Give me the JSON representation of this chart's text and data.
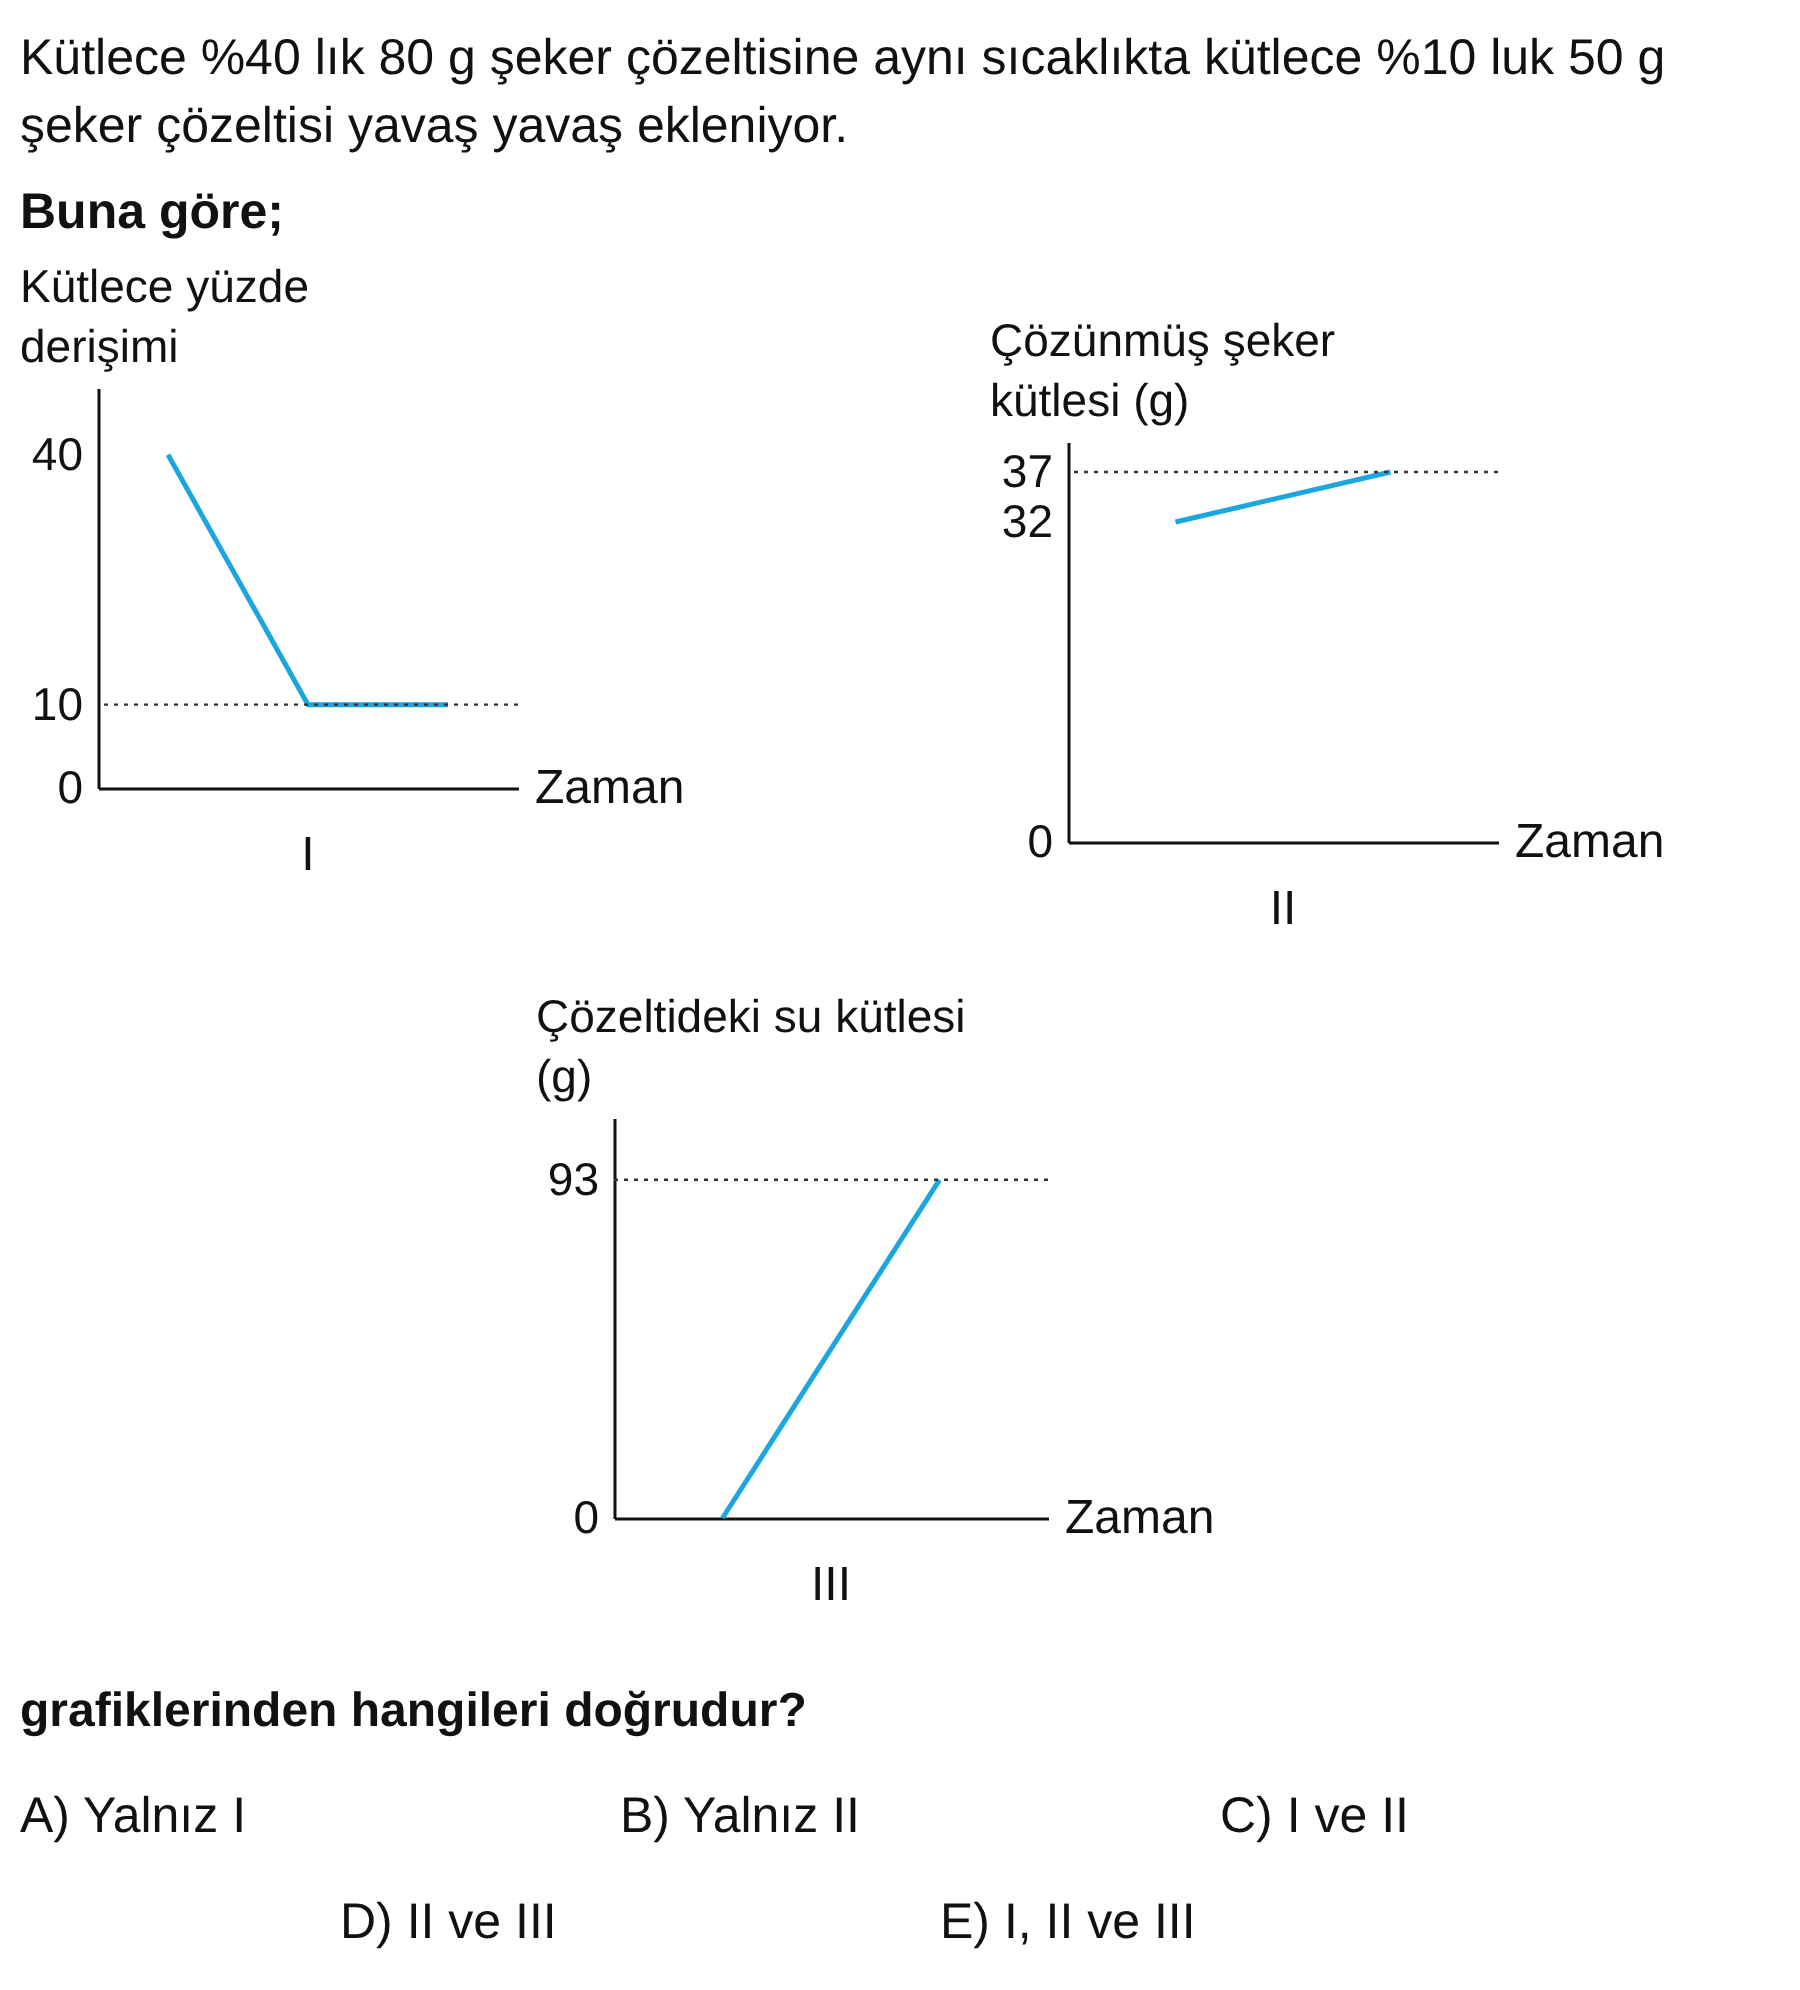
{
  "chart_data": [
    {
      "type": "line",
      "title": "Kütlece %40 lık 80 g şeker çözeltisine aynı sıcaklıkta kütlece %10 luk 50 g şeker çözeltisi yavaş yavaş ekleniyor.",
      "subtitle": "Buna göre;",
      "ylabel": "Kütlece yüzde derişimi",
      "xlabel": "Zaman",
      "categories": [
        null,
        null,
        null
      ],
      "values": [
        40,
        10,
        10
      ],
      "color": "#1ba6e0",
      "ylim": [
        0,
        48
      ],
      "yticks": [
        0,
        10,
        40
      ],
      "tick_labels": "y",
      "ref_lines": [
        {
          "axis": "y",
          "value": 10,
          "line_style": "dotted"
        }
      ],
      "annotations": [
        "I"
      ]
    },
    {
      "type": "line",
      "ylabel": "Çözünmüş şeker kütlesi (g)",
      "xlabel": "Zaman",
      "categories": [
        null,
        null
      ],
      "values": [
        32,
        37
      ],
      "color": "#1ba6e0",
      "ylim": [
        0,
        40
      ],
      "yticks": [
        0,
        32,
        37
      ],
      "tick_labels": "y",
      "ref_lines": [
        {
          "axis": "y",
          "value": 37,
          "line_style": "dotted"
        }
      ],
      "annotations": [
        "II"
      ]
    },
    {
      "type": "line",
      "ylabel": "Çözeltideki su kütlesi (g)",
      "xlabel": "Zaman",
      "categories": [
        null,
        null
      ],
      "values": [
        0,
        93
      ],
      "color": "#1ba6e0",
      "ylim": [
        0,
        110
      ],
      "yticks": [
        0,
        93
      ],
      "tick_labels": "y",
      "ref_lines": [
        {
          "axis": "y",
          "value": 93,
          "line_style": "dotted"
        }
      ],
      "annotations": [
        "III",
        "grafiklerinden hangileri doğrudur?",
        "A)  Yalnız I",
        "B)  Yalnız II",
        "C)  I ve II",
        "D)  II ve III",
        "E)  I, II ve III"
      ]
    }
  ]
}
